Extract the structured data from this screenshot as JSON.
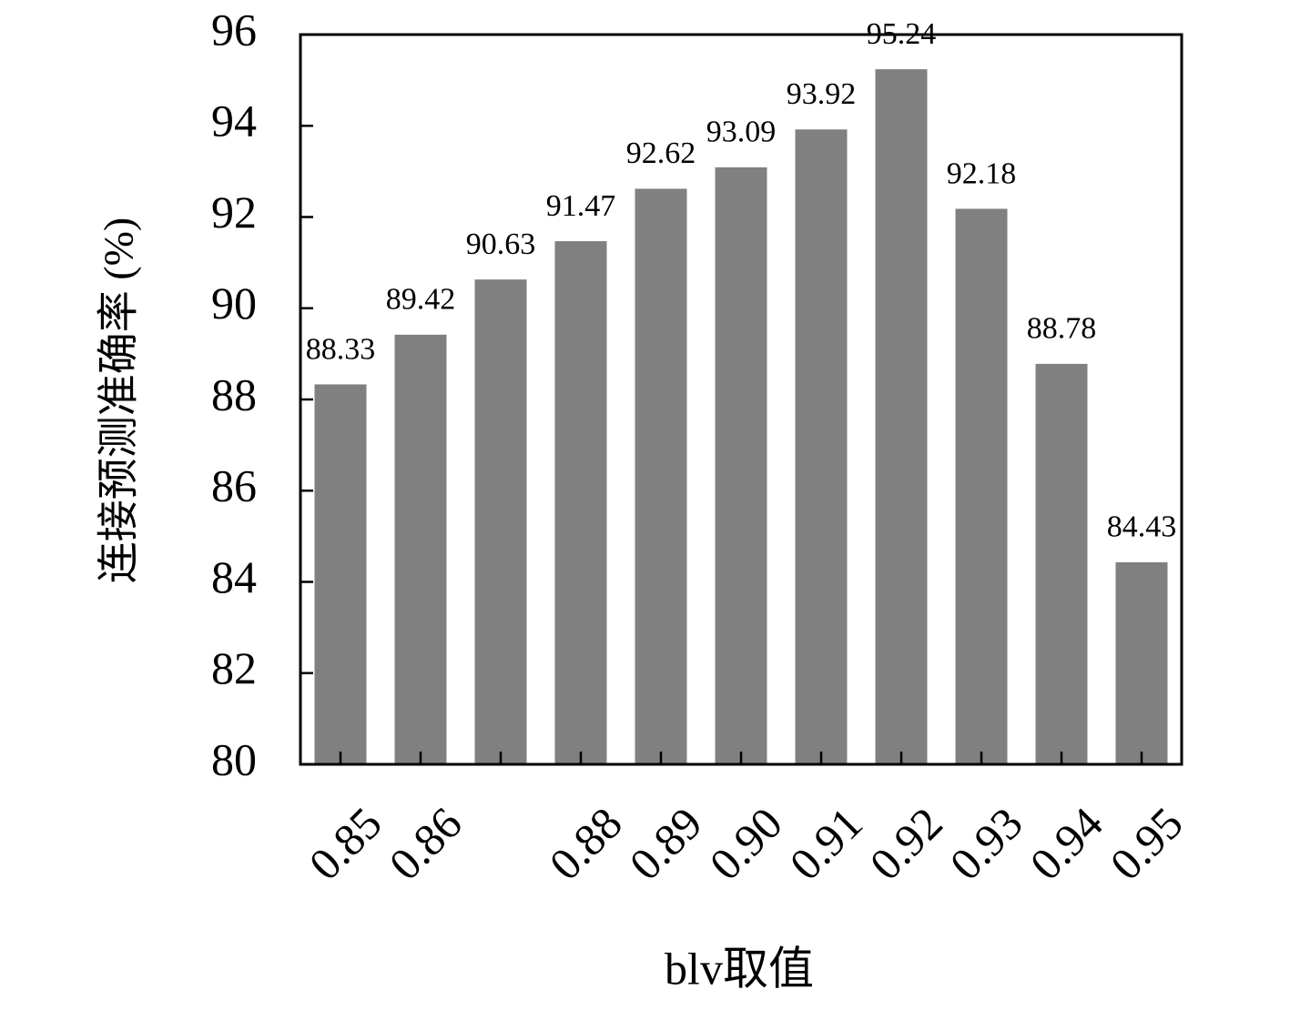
{
  "chart_data": {
    "type": "bar",
    "categories": [
      "0.85",
      "0.86",
      null,
      "0.88",
      "0.89",
      "0.90",
      "0.91",
      "0.92",
      "0.93",
      "0.94",
      "0.95"
    ],
    "values": [
      88.33,
      89.42,
      90.63,
      91.47,
      92.62,
      93.09,
      93.92,
      95.24,
      92.18,
      88.78,
      84.43
    ],
    "color": "#808080",
    "ylim": [
      80,
      96
    ],
    "yticks": [
      80,
      82,
      84,
      86,
      88,
      90,
      92,
      94,
      96
    ],
    "xlabel": "blv取值",
    "ylabel": "连接预测准确率 (%)",
    "grid": false
  }
}
